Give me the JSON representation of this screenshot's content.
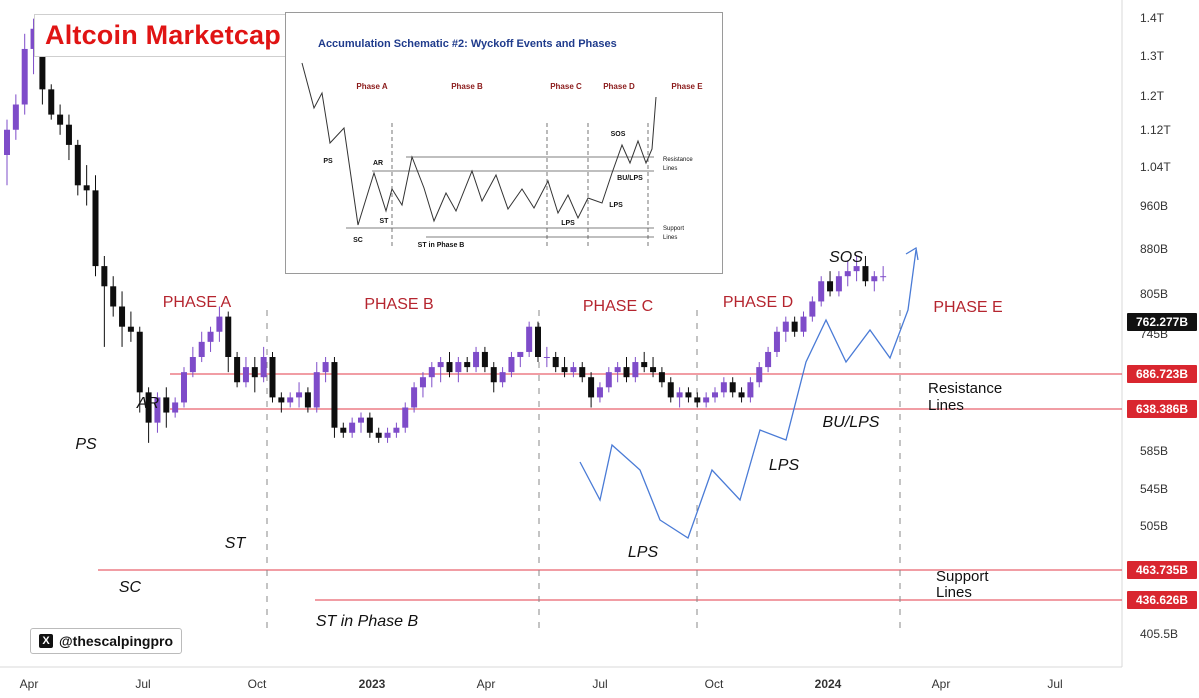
{
  "header": {
    "title": "Altcoin Marketcap",
    "handle": "@thescalpingpro",
    "x_icon": "x-logo-icon"
  },
  "colors": {
    "bull": "#7e4cc9",
    "bear": "#0e0e0e",
    "level_line": "#e33b4a",
    "level_label_bg": "#d9262f",
    "projection": "#4a7bd6",
    "phase_text": "#b5252f"
  },
  "chart_data": {
    "type": "candlestick",
    "y_axis_ticks": [
      "1.4T",
      "1.3T",
      "1.2T",
      "1.12T",
      "1.04T",
      "960B",
      "880B",
      "805B",
      "745B",
      "686.723B",
      "638.386B",
      "585B",
      "545B",
      "505B",
      "463.735B",
      "436.626B",
      "405.5B"
    ],
    "x_axis_ticks": [
      "Apr",
      "Jul",
      "Oct",
      "2023",
      "Apr",
      "Jul",
      "Oct",
      "2024",
      "Apr",
      "Jul"
    ],
    "price_tag": "762.277B",
    "levels": [
      {
        "value": 686.723,
        "label": "686.723B",
        "kind": "resistance"
      },
      {
        "value": 638.386,
        "label": "638.386B",
        "kind": "resistance"
      },
      {
        "value": 463.735,
        "label": "463.735B",
        "kind": "support"
      },
      {
        "value": 436.626,
        "label": "436.626B",
        "kind": "support"
      }
    ],
    "phases": [
      "PHASE A",
      "PHASE B",
      "PHASE C",
      "PHASE D",
      "PHASE E"
    ],
    "annotations": [
      "PS",
      "SC",
      "AR",
      "ST",
      "ST in Phase B",
      "LPS",
      "LPS",
      "BU/LPS",
      "SOS"
    ],
    "line_labels": [
      {
        "text": "Resistance",
        "line2": "Lines"
      },
      {
        "text": "Support",
        "line2": "Lines"
      }
    ],
    "candles_approx": [
      [
        1.0,
        1.07,
        0.94,
        1.05
      ],
      [
        1.05,
        1.12,
        1.03,
        1.1
      ],
      [
        1.1,
        1.24,
        1.08,
        1.21
      ],
      [
        1.21,
        1.27,
        1.16,
        1.25
      ],
      [
        1.25,
        1.27,
        1.1,
        1.13
      ],
      [
        1.13,
        1.14,
        1.07,
        1.08
      ],
      [
        1.08,
        1.1,
        1.04,
        1.06
      ],
      [
        1.06,
        1.08,
        0.99,
        1.02
      ],
      [
        1.02,
        1.03,
        0.92,
        0.94
      ],
      [
        0.94,
        0.98,
        0.9,
        0.93
      ],
      [
        0.93,
        0.96,
        0.76,
        0.78
      ],
      [
        0.78,
        0.8,
        0.62,
        0.74
      ],
      [
        0.74,
        0.76,
        0.68,
        0.7
      ],
      [
        0.7,
        0.73,
        0.62,
        0.66
      ],
      [
        0.66,
        0.69,
        0.63,
        0.65
      ],
      [
        0.65,
        0.66,
        0.49,
        0.53
      ],
      [
        0.53,
        0.54,
        0.43,
        0.47
      ],
      [
        0.47,
        0.53,
        0.45,
        0.52
      ],
      [
        0.52,
        0.54,
        0.46,
        0.49
      ],
      [
        0.49,
        0.52,
        0.48,
        0.51
      ],
      [
        0.51,
        0.58,
        0.5,
        0.57
      ],
      [
        0.57,
        0.62,
        0.56,
        0.6
      ],
      [
        0.6,
        0.65,
        0.59,
        0.63
      ],
      [
        0.63,
        0.66,
        0.61,
        0.65
      ],
      [
        0.65,
        0.7,
        0.63,
        0.68
      ],
      [
        0.68,
        0.69,
        0.57,
        0.6
      ],
      [
        0.6,
        0.61,
        0.54,
        0.55
      ],
      [
        0.55,
        0.6,
        0.54,
        0.58
      ],
      [
        0.58,
        0.6,
        0.53,
        0.56
      ],
      [
        0.56,
        0.62,
        0.55,
        0.6
      ],
      [
        0.6,
        0.61,
        0.51,
        0.52
      ],
      [
        0.52,
        0.53,
        0.49,
        0.51
      ],
      [
        0.51,
        0.53,
        0.5,
        0.52
      ],
      [
        0.52,
        0.55,
        0.5,
        0.53
      ],
      [
        0.53,
        0.54,
        0.49,
        0.5
      ],
      [
        0.5,
        0.59,
        0.49,
        0.57
      ],
      [
        0.57,
        0.6,
        0.55,
        0.59
      ],
      [
        0.59,
        0.6,
        0.44,
        0.46
      ],
      [
        0.46,
        0.47,
        0.44,
        0.45
      ],
      [
        0.45,
        0.48,
        0.44,
        0.47
      ],
      [
        0.47,
        0.49,
        0.45,
        0.48
      ],
      [
        0.48,
        0.49,
        0.44,
        0.45
      ],
      [
        0.45,
        0.46,
        0.43,
        0.44
      ],
      [
        0.44,
        0.46,
        0.43,
        0.45
      ],
      [
        0.45,
        0.47,
        0.44,
        0.46
      ],
      [
        0.46,
        0.51,
        0.45,
        0.5
      ],
      [
        0.5,
        0.55,
        0.49,
        0.54
      ],
      [
        0.54,
        0.57,
        0.52,
        0.56
      ],
      [
        0.56,
        0.59,
        0.54,
        0.58
      ],
      [
        0.58,
        0.6,
        0.55,
        0.59
      ],
      [
        0.59,
        0.61,
        0.56,
        0.57
      ],
      [
        0.57,
        0.6,
        0.55,
        0.59
      ],
      [
        0.59,
        0.6,
        0.57,
        0.58
      ],
      [
        0.58,
        0.62,
        0.57,
        0.61
      ],
      [
        0.61,
        0.62,
        0.57,
        0.58
      ],
      [
        0.58,
        0.59,
        0.53,
        0.55
      ],
      [
        0.55,
        0.58,
        0.54,
        0.57
      ],
      [
        0.57,
        0.61,
        0.56,
        0.6
      ],
      [
        0.6,
        0.61,
        0.58,
        0.61
      ],
      [
        0.61,
        0.67,
        0.6,
        0.66
      ],
      [
        0.66,
        0.67,
        0.59,
        0.6
      ],
      [
        0.6,
        0.62,
        0.58,
        0.6
      ],
      [
        0.6,
        0.61,
        0.57,
        0.58
      ],
      [
        0.58,
        0.6,
        0.56,
        0.57
      ],
      [
        0.57,
        0.59,
        0.56,
        0.58
      ],
      [
        0.58,
        0.59,
        0.55,
        0.56
      ],
      [
        0.56,
        0.57,
        0.5,
        0.52
      ],
      [
        0.52,
        0.55,
        0.51,
        0.54
      ],
      [
        0.54,
        0.58,
        0.53,
        0.57
      ],
      [
        0.57,
        0.59,
        0.55,
        0.58
      ],
      [
        0.58,
        0.6,
        0.55,
        0.56
      ],
      [
        0.56,
        0.6,
        0.55,
        0.59
      ],
      [
        0.59,
        0.61,
        0.57,
        0.58
      ],
      [
        0.58,
        0.6,
        0.56,
        0.57
      ],
      [
        0.57,
        0.58,
        0.54,
        0.55
      ],
      [
        0.55,
        0.56,
        0.51,
        0.52
      ],
      [
        0.52,
        0.54,
        0.5,
        0.53
      ],
      [
        0.53,
        0.54,
        0.51,
        0.52
      ],
      [
        0.52,
        0.53,
        0.5,
        0.51
      ],
      [
        0.51,
        0.53,
        0.5,
        0.52
      ],
      [
        0.52,
        0.54,
        0.51,
        0.53
      ],
      [
        0.53,
        0.56,
        0.52,
        0.55
      ],
      [
        0.55,
        0.56,
        0.52,
        0.53
      ],
      [
        0.53,
        0.54,
        0.51,
        0.52
      ],
      [
        0.52,
        0.56,
        0.51,
        0.55
      ],
      [
        0.55,
        0.59,
        0.54,
        0.58
      ],
      [
        0.58,
        0.62,
        0.57,
        0.61
      ],
      [
        0.61,
        0.66,
        0.6,
        0.65
      ],
      [
        0.65,
        0.68,
        0.63,
        0.67
      ],
      [
        0.67,
        0.68,
        0.64,
        0.65
      ],
      [
        0.65,
        0.69,
        0.64,
        0.68
      ],
      [
        0.68,
        0.72,
        0.67,
        0.71
      ],
      [
        0.71,
        0.76,
        0.7,
        0.75
      ],
      [
        0.75,
        0.77,
        0.72,
        0.73
      ],
      [
        0.73,
        0.77,
        0.72,
        0.76
      ],
      [
        0.76,
        0.79,
        0.74,
        0.77
      ],
      [
        0.77,
        0.8,
        0.75,
        0.78
      ],
      [
        0.78,
        0.8,
        0.74,
        0.75
      ],
      [
        0.75,
        0.77,
        0.73,
        0.76
      ],
      [
        0.76,
        0.78,
        0.75,
        0.76
      ]
    ]
  },
  "inset": {
    "title": "Accumulation Schematic #2: Wyckoff Events and Phases",
    "phases": [
      "Phase A",
      "Phase B",
      "Phase C",
      "Phase D",
      "Phase E"
    ],
    "labels": [
      "PS",
      "SC",
      "AR",
      "ST",
      "ST in Phase B",
      "LPS",
      "SOS",
      "BU/LPS",
      "LPS"
    ],
    "resistance_label": "Resistance",
    "resistance_label2": "Lines",
    "support_label": "Support",
    "support_label2": "Lines"
  }
}
